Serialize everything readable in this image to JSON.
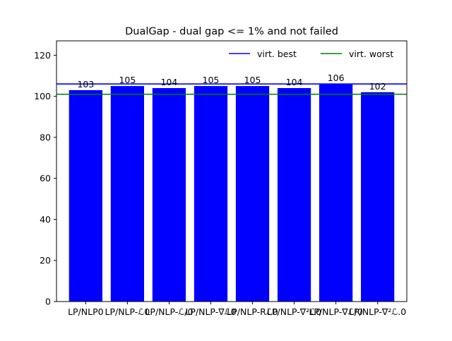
{
  "chart_data": {
    "type": "bar",
    "title": "DualGap - dual gap <= 1% and not failed",
    "xlabel": "",
    "ylabel": "",
    "categories": [
      "LP/NLP0",
      "LP/NLP-ℒ0",
      "LP/NLP-ℒ/0",
      "LP/NLP-∇ℒ0",
      "LP/NLP-Rℒ0",
      "LP/NLP-∇²ℒ0",
      "LP/NLP-∇ℒ/0",
      "LP/NLP-∇²ℒ.0"
    ],
    "tick_labels": [
      "LP/NLP0",
      "LP/NLP-ℒ0",
      "LP/NLP-ℒ/0",
      "LP/NLP-∇ℒ0",
      "LP/NLP-Rℒ0",
      "LP/NLP-∇²ℒ0",
      "LP/NLP-∇ℒ/0",
      "LP/NLP-∇²ℒ.0"
    ],
    "values": [
      103,
      105,
      104,
      105,
      105,
      104,
      106,
      102
    ],
    "data_labels": [
      "103",
      "105",
      "104",
      "105",
      "105",
      "104",
      "106",
      "102"
    ],
    "bar_color": "#0000ff",
    "ylim": [
      0,
      127
    ],
    "yticks": [
      0,
      20,
      40,
      60,
      80,
      100,
      120
    ],
    "reference_lines": [
      {
        "name": "virt. best",
        "value": 106,
        "color": "#0000ff"
      },
      {
        "name": "virt. worst",
        "value": 101,
        "color": "#008000"
      }
    ],
    "legend": {
      "position": "top-right"
    },
    "grid": false
  }
}
